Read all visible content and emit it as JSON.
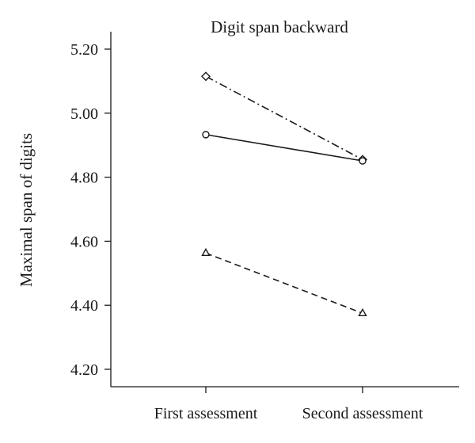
{
  "chart_data": {
    "type": "line",
    "title": "Digit span backward",
    "xlabel": "",
    "ylabel": "Maximal span of digits",
    "categories": [
      "First assessment",
      "Second assessment"
    ],
    "ylim": [
      4.15,
      5.3
    ],
    "yticks": [
      4.2,
      4.4,
      4.6,
      4.8,
      5.0,
      5.2
    ],
    "ytick_labels": [
      "4.20",
      "4.40",
      "4.60",
      "4.80",
      "5.00",
      "5.20"
    ],
    "grid": false,
    "legend": "none",
    "series": [
      {
        "marker": "diamond",
        "line_style": "dashdot",
        "color": "#1a1a1a",
        "values": [
          5.115,
          4.855
        ]
      },
      {
        "marker": "circle",
        "line_style": "solid",
        "color": "#1a1a1a",
        "values": [
          4.933,
          4.851
        ]
      },
      {
        "marker": "triangle",
        "line_style": "dashed",
        "color": "#1a1a1a",
        "values": [
          4.563,
          4.375
        ]
      }
    ]
  }
}
